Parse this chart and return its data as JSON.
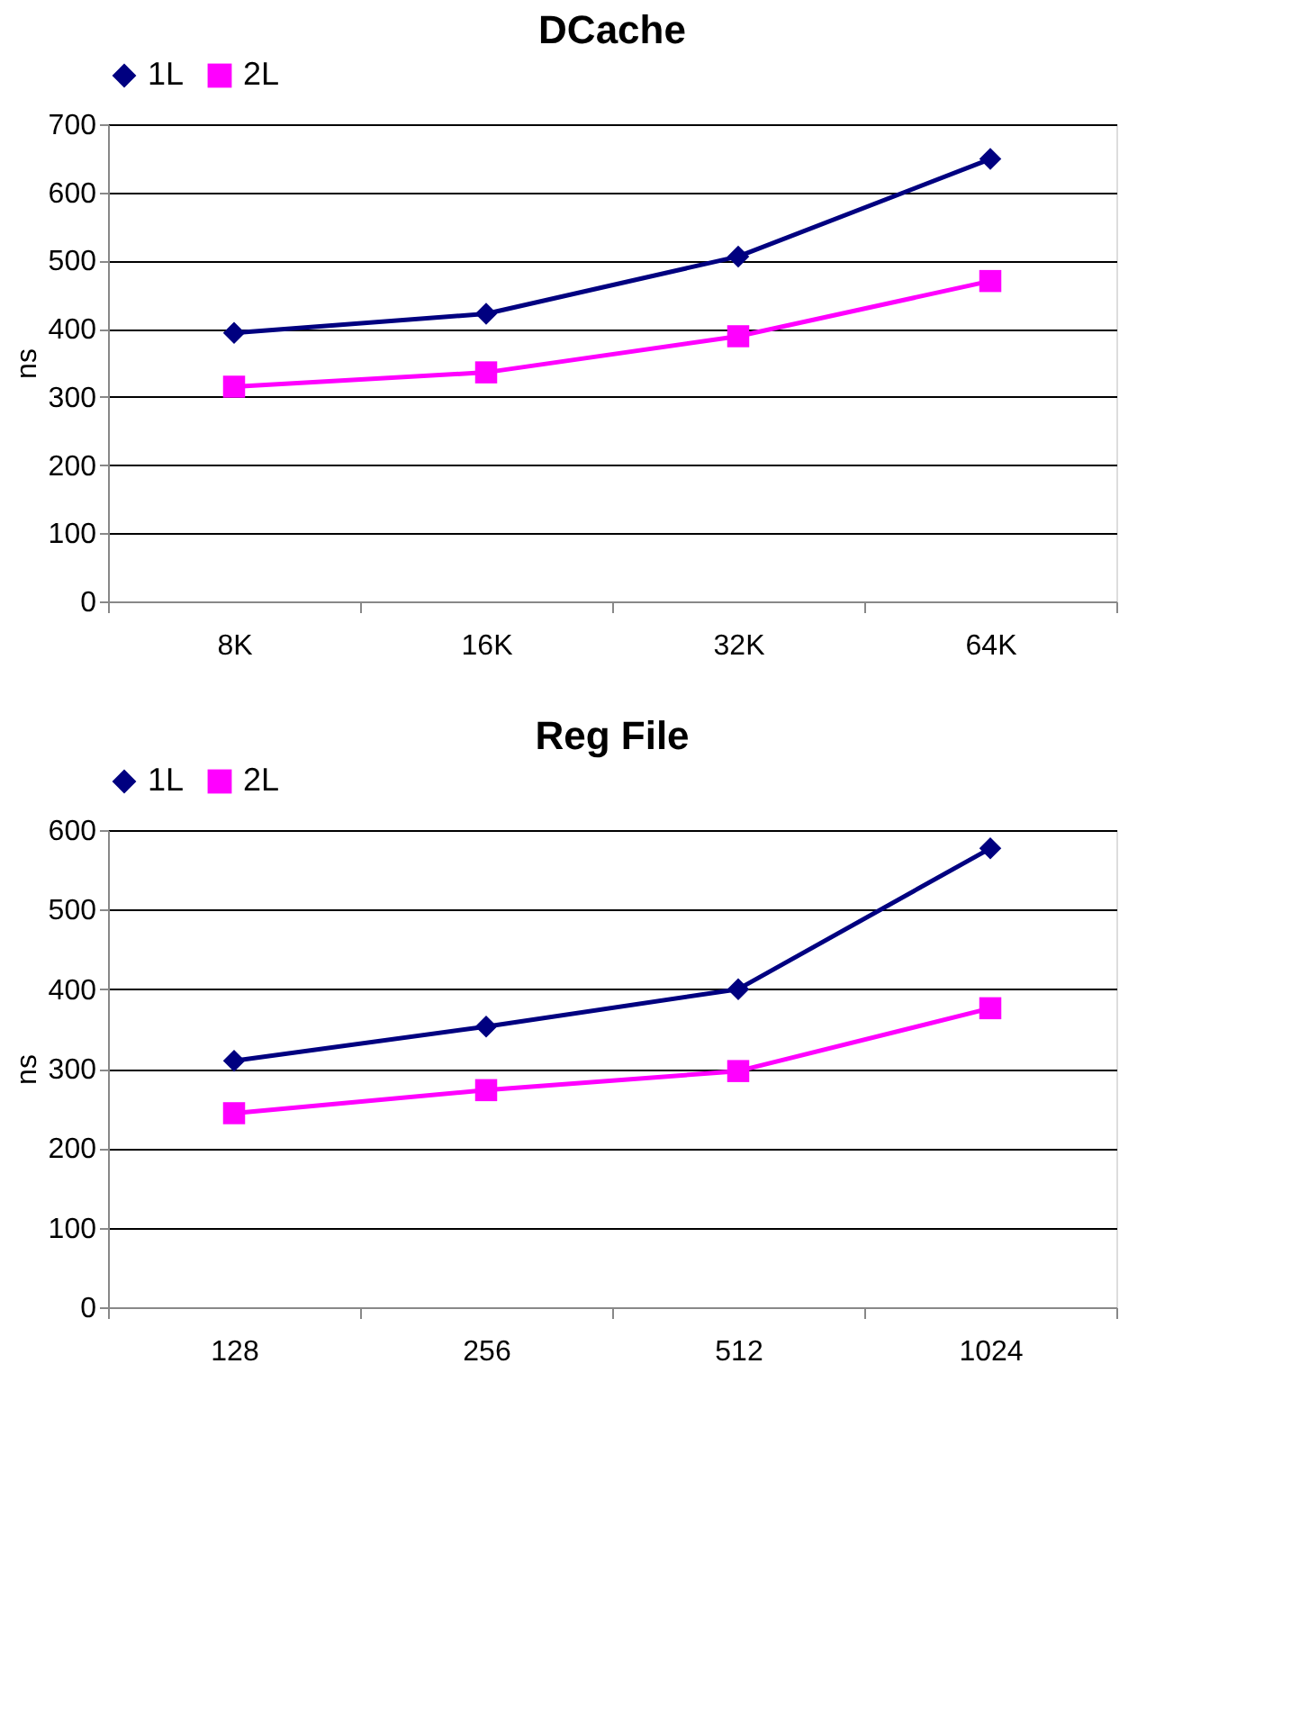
{
  "chart_data": [
    {
      "type": "line",
      "title": "DCache",
      "ylabel": "ns",
      "categories": [
        "8K",
        "16K",
        "32K",
        "64K"
      ],
      "ylim": [
        0,
        700
      ],
      "yticks": [
        0,
        100,
        200,
        300,
        400,
        500,
        600,
        700
      ],
      "grid": "y",
      "legend": "top",
      "series": [
        {
          "name": "1L",
          "color": "#000080",
          "marker": "diamond",
          "values": [
            394,
            422,
            506,
            649
          ]
        },
        {
          "name": "2L",
          "color": "#ff00ff",
          "marker": "square",
          "values": [
            315,
            336,
            389,
            470
          ]
        }
      ]
    },
    {
      "type": "line",
      "title": "Reg File",
      "ylabel": "ns",
      "categories": [
        "128",
        "256",
        "512",
        "1024"
      ],
      "ylim": [
        0,
        600
      ],
      "yticks": [
        0,
        100,
        200,
        300,
        400,
        500,
        600
      ],
      "grid": "y",
      "legend": "top",
      "series": [
        {
          "name": "1L",
          "color": "#000080",
          "marker": "diamond",
          "values": [
            310,
            353,
            400,
            577
          ]
        },
        {
          "name": "2L",
          "color": "#ff00ff",
          "marker": "square",
          "values": [
            244,
            273,
            297,
            376
          ]
        }
      ]
    }
  ]
}
